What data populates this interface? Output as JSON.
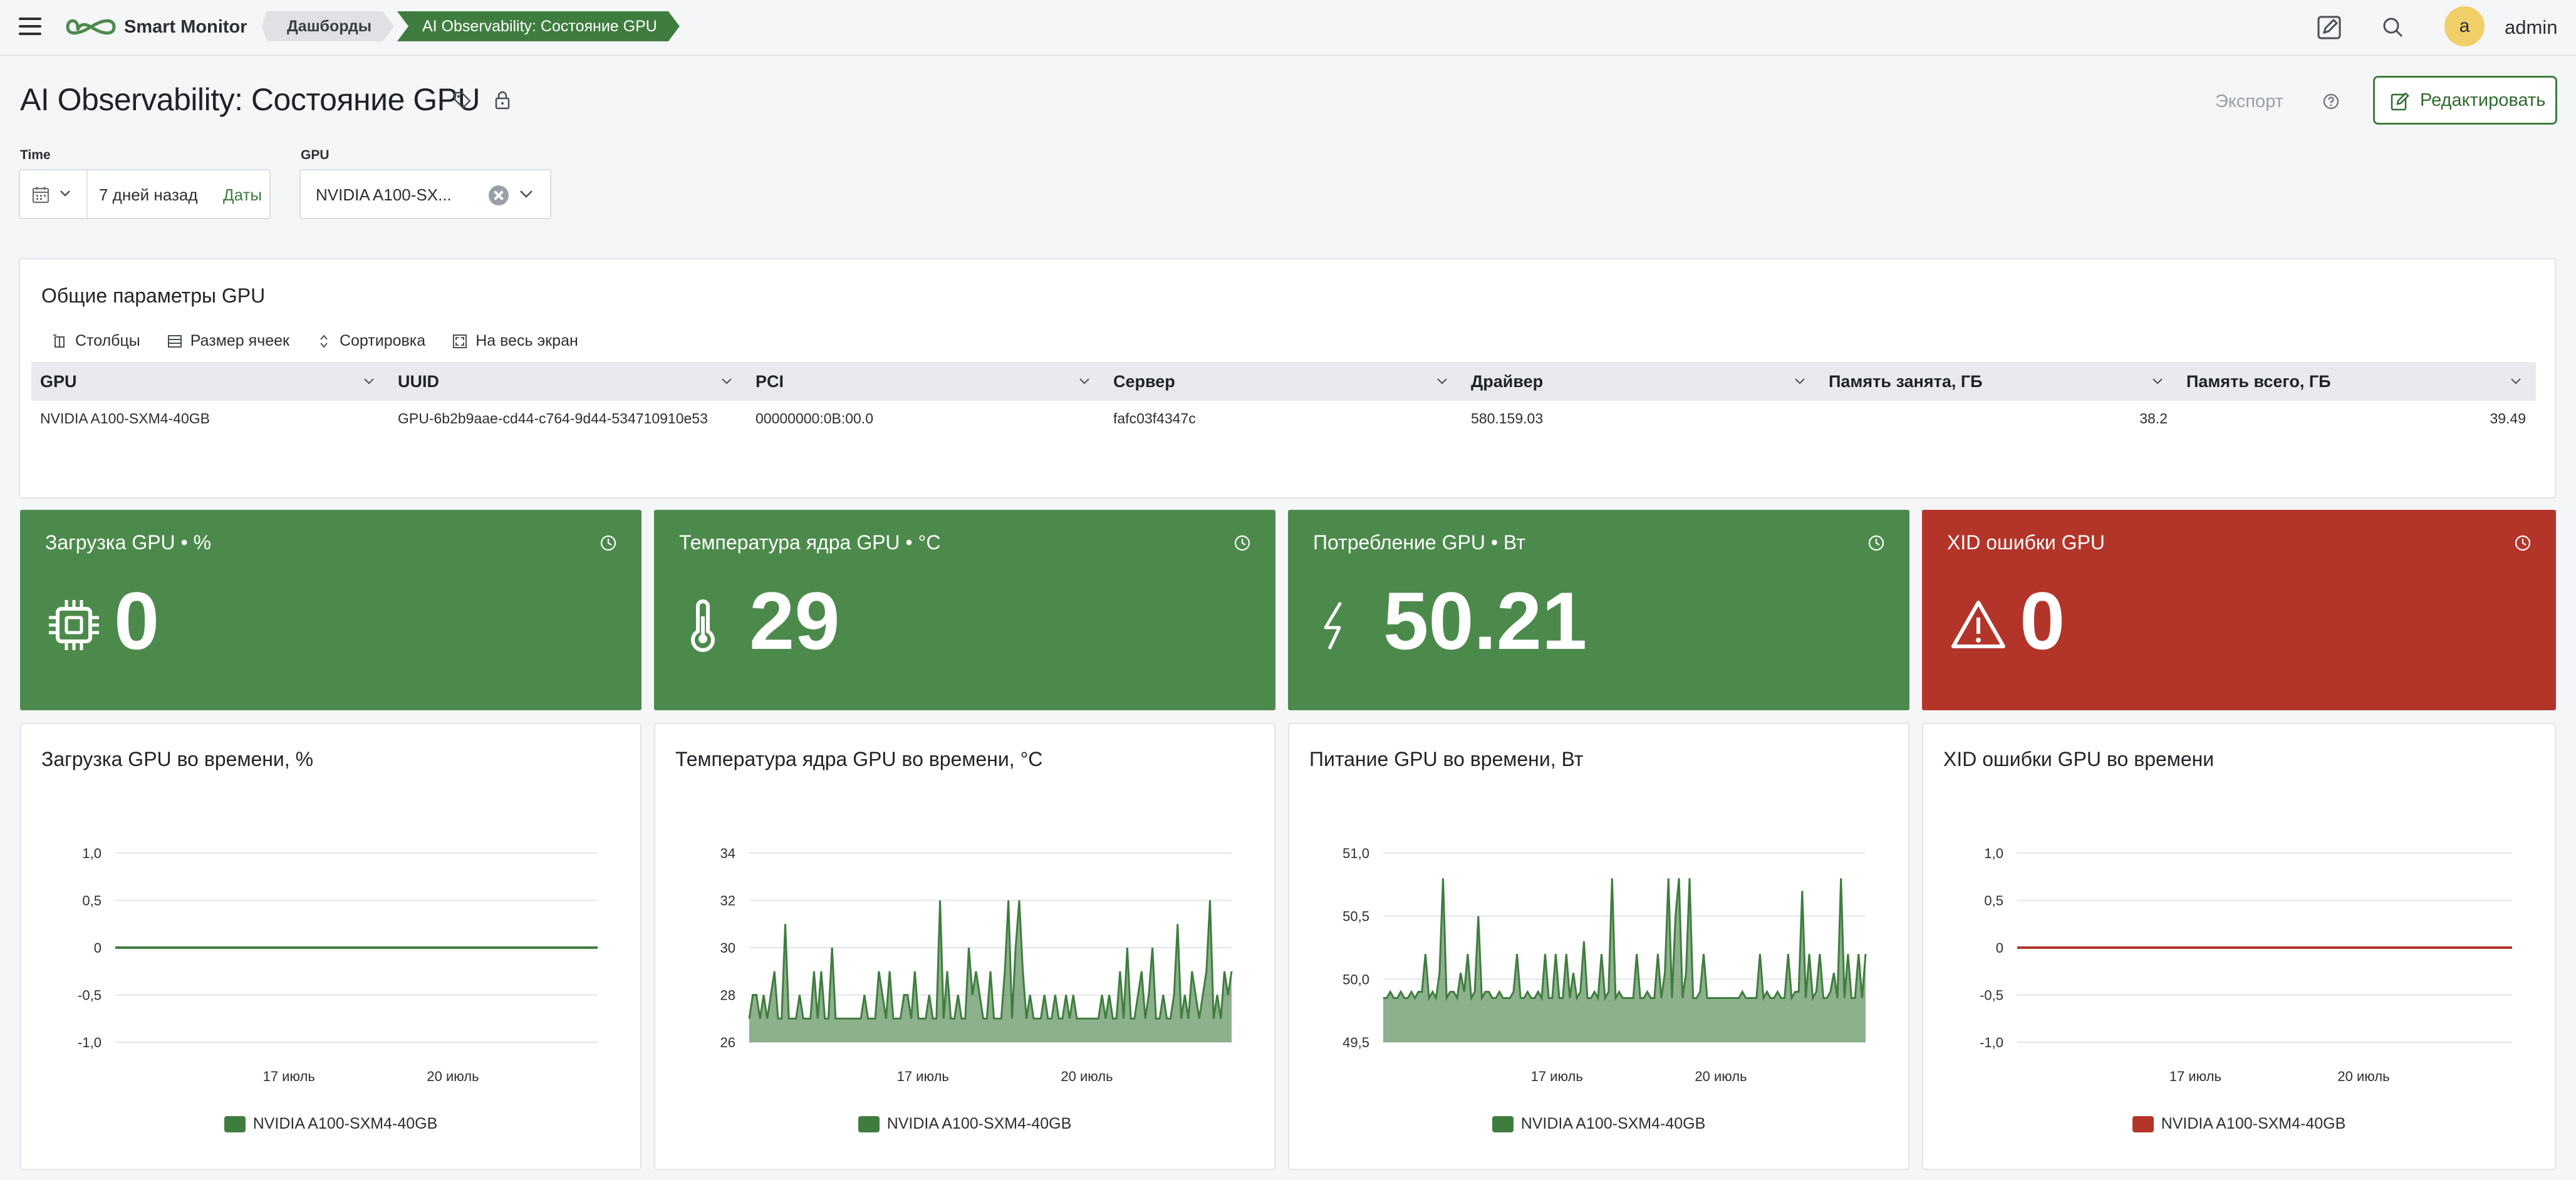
{
  "header": {
    "brand": "Smart Monitor",
    "breadcrumbs": [
      "Дашборды",
      "AI Observability: Состояние GPU"
    ],
    "user": {
      "initial": "a",
      "name": "admin"
    }
  },
  "page": {
    "title": "AI Observability: Состояние GPU",
    "export_label": "Экспорт",
    "edit_label": "Редактировать"
  },
  "filters": {
    "time": {
      "label": "Time",
      "value": "7 дней назад",
      "dates_label": "Даты"
    },
    "gpu": {
      "label": "GPU",
      "value": "NVIDIA A100-SX..."
    }
  },
  "table_panel": {
    "title": "Общие параметры GPU",
    "tools": [
      "Столбцы",
      "Размер ячеек",
      "Сортировка",
      "На весь экран"
    ],
    "columns": [
      "GPU",
      "UUID",
      "PCI",
      "Сервер",
      "Драйвер",
      "Память занята, ГБ",
      "Память всего, ГБ"
    ],
    "rows": [
      [
        "NVIDIA A100-SXM4-40GB",
        "GPU-6b2b9aae-cd44-c764-9d44-534710910e53",
        "00000000:0B:00.0",
        "fafc03f4347c",
        "580.159.03",
        "38.2",
        "39.49"
      ]
    ]
  },
  "stats": [
    {
      "title": "Загрузка GPU • %",
      "value": "0",
      "icon": "chip-icon",
      "color": "#4c8a4c"
    },
    {
      "title": "Температура ядра GPU • °C",
      "value": "29",
      "icon": "thermometer-icon",
      "color": "#4c8a4c"
    },
    {
      "title": "Потребление GPU • Вт",
      "value": "50.21",
      "icon": "lightning-icon",
      "color": "#4c8a4c"
    },
    {
      "title": "XID ошибки GPU",
      "value": "0",
      "icon": "warning-icon",
      "color": "#b3352a"
    }
  ],
  "chart_data": [
    {
      "type": "line",
      "title": "Загрузка GPU во времени, %",
      "x_ticks": [
        "17 июль",
        "20 июль"
      ],
      "y_ticks": [
        "1,0",
        "0,5",
        "0",
        "-0,5",
        "-1,0"
      ],
      "ylim": [
        -1.0,
        1.0
      ],
      "grid": true,
      "legend_position": "bottom",
      "series": [
        {
          "name": "NVIDIA A100-SXM4-40GB",
          "color": "#3f7d3f",
          "fill": false,
          "values": [
            0,
            0
          ]
        }
      ]
    },
    {
      "type": "area",
      "title": "Температура ядра GPU во времени, °C",
      "x_ticks": [
        "17 июль",
        "20 июль"
      ],
      "y_ticks": [
        "34",
        "32",
        "30",
        "28",
        "26"
      ],
      "ylim": [
        26,
        34
      ],
      "grid": true,
      "legend_position": "bottom",
      "series": [
        {
          "name": "NVIDIA A100-SXM4-40GB",
          "color": "#3f7d3f",
          "fill": true,
          "values": [
            27,
            28,
            28,
            27,
            28,
            27,
            28,
            29,
            27,
            27,
            31,
            27,
            27,
            27,
            28,
            27,
            27,
            27,
            29,
            27,
            29,
            27,
            27,
            30,
            27,
            27,
            27,
            27,
            27,
            27,
            27,
            27,
            28,
            27,
            27,
            27,
            29,
            28,
            27,
            29,
            27,
            27,
            27,
            28,
            28,
            27,
            29,
            27,
            27,
            27,
            28,
            27,
            27,
            32,
            27,
            29,
            27,
            27,
            28,
            27,
            27,
            30,
            28,
            29,
            28,
            27,
            27,
            29,
            27,
            27,
            27,
            29,
            32,
            27,
            30,
            32,
            29,
            27,
            28,
            27,
            27,
            27,
            28,
            27,
            27,
            28,
            27,
            27,
            28,
            27,
            28,
            27,
            27,
            27,
            27,
            27,
            27,
            27,
            28,
            27,
            28,
            27,
            27,
            29,
            27,
            30,
            27,
            27,
            28,
            29,
            27,
            28,
            30,
            27,
            27,
            28,
            27,
            27,
            28,
            31,
            27,
            28,
            27,
            29,
            28,
            27,
            28,
            29,
            32,
            27,
            28,
            27,
            29,
            28,
            29
          ]
        }
      ]
    },
    {
      "type": "area",
      "title": "Питание GPU во времени, Вт",
      "x_ticks": [
        "17 июль",
        "20 июль"
      ],
      "y_ticks": [
        "51,0",
        "50,5",
        "50,0",
        "49,5"
      ],
      "ylim": [
        49.5,
        51.0
      ],
      "grid": true,
      "legend_position": "bottom",
      "series": [
        {
          "name": "NVIDIA A100-SXM4-40GB",
          "color": "#3f7d3f",
          "fill": true,
          "values": [
            49.85,
            49.85,
            49.9,
            49.85,
            49.85,
            49.9,
            49.85,
            49.85,
            49.9,
            49.85,
            49.9,
            49.9,
            50.2,
            49.85,
            49.9,
            49.85,
            50.05,
            50.8,
            49.85,
            49.9,
            49.9,
            49.85,
            50.05,
            49.9,
            50.2,
            49.85,
            49.9,
            50.5,
            49.85,
            49.9,
            49.9,
            49.85,
            49.85,
            49.9,
            49.85,
            49.85,
            49.85,
            49.9,
            50.2,
            49.85,
            49.85,
            49.9,
            49.85,
            49.85,
            49.9,
            49.85,
            50.2,
            49.85,
            49.85,
            50.2,
            49.85,
            49.85,
            50.2,
            49.85,
            50.05,
            49.85,
            49.9,
            50.3,
            49.85,
            49.85,
            49.9,
            49.85,
            50.2,
            49.85,
            49.9,
            50.8,
            49.85,
            49.9,
            49.85,
            49.85,
            49.85,
            49.85,
            50.2,
            49.85,
            49.85,
            49.9,
            49.85,
            49.85,
            50.2,
            49.85,
            50.05,
            50.8,
            49.85,
            50.5,
            50.8,
            49.85,
            50.05,
            50.8,
            49.85,
            49.85,
            49.9,
            50.2,
            49.85,
            49.85,
            49.85,
            49.85,
            49.85,
            49.85,
            49.85,
            49.85,
            49.85,
            49.85,
            49.9,
            49.85,
            49.85,
            49.85,
            49.85,
            50.2,
            49.85,
            49.9,
            49.85,
            49.85,
            49.9,
            49.85,
            49.85,
            50.2,
            49.85,
            49.9,
            49.9,
            50.7,
            49.85,
            50.2,
            49.85,
            49.9,
            50.2,
            49.85,
            49.85,
            49.9,
            50.05,
            49.85,
            50.8,
            49.85,
            50.2,
            49.85,
            49.85,
            50.2,
            49.85,
            50.2
          ]
        }
      ]
    },
    {
      "type": "line",
      "title": "XID ошибки GPU во времени",
      "x_ticks": [
        "17 июль",
        "20 июль"
      ],
      "y_ticks": [
        "1,0",
        "0,5",
        "0",
        "-0,5",
        "-1,0"
      ],
      "ylim": [
        -1.0,
        1.0
      ],
      "grid": true,
      "legend_position": "bottom",
      "series": [
        {
          "name": "NVIDIA A100-SXM4-40GB",
          "color": "#b3352a",
          "fill": false,
          "values": [
            0,
            0
          ]
        }
      ]
    }
  ]
}
